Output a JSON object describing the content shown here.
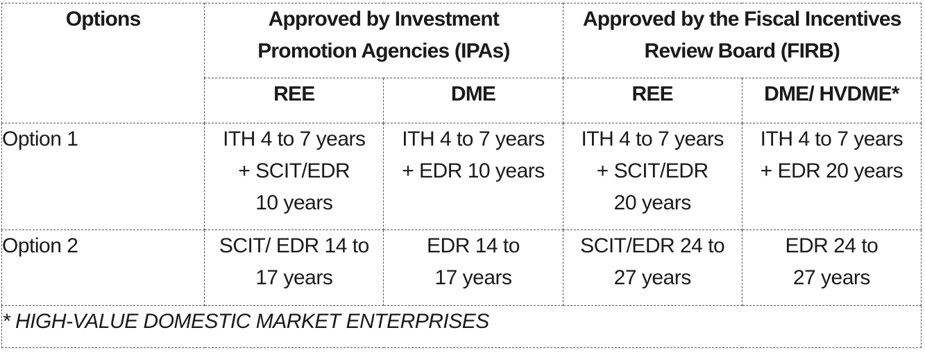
{
  "table": {
    "options_header": "Options",
    "groups": [
      {
        "lines": [
          "Approved by Investment",
          "Promotion Agencies (IPAs)"
        ]
      },
      {
        "lines": [
          "Approved by the Fiscal Incentives",
          "Review Board (FIRB)"
        ]
      }
    ],
    "subheaders": [
      "REE",
      "DME",
      "REE",
      "DME/ HVDME*"
    ],
    "rows": [
      {
        "label": "Option 1",
        "cells": [
          [
            "ITH 4 to 7 years",
            "+ SCIT/EDR",
            "10 years"
          ],
          [
            "ITH 4 to 7 years",
            "+ EDR 10 years",
            ""
          ],
          [
            "ITH 4 to 7 years",
            "+ SCIT/EDR",
            "20 years"
          ],
          [
            "ITH 4 to 7 years",
            "+ EDR 20 years",
            ""
          ]
        ]
      },
      {
        "label": "Option 2",
        "cells": [
          [
            "SCIT/ EDR 14 to",
            "17 years"
          ],
          [
            "EDR 14 to",
            "17 years"
          ],
          [
            "SCIT/EDR 24 to",
            "27 years"
          ],
          [
            "EDR 24 to",
            "27 years"
          ]
        ]
      }
    ],
    "footnote": "* HIGH-VALUE DOMESTIC MARKET ENTERPRISES"
  }
}
